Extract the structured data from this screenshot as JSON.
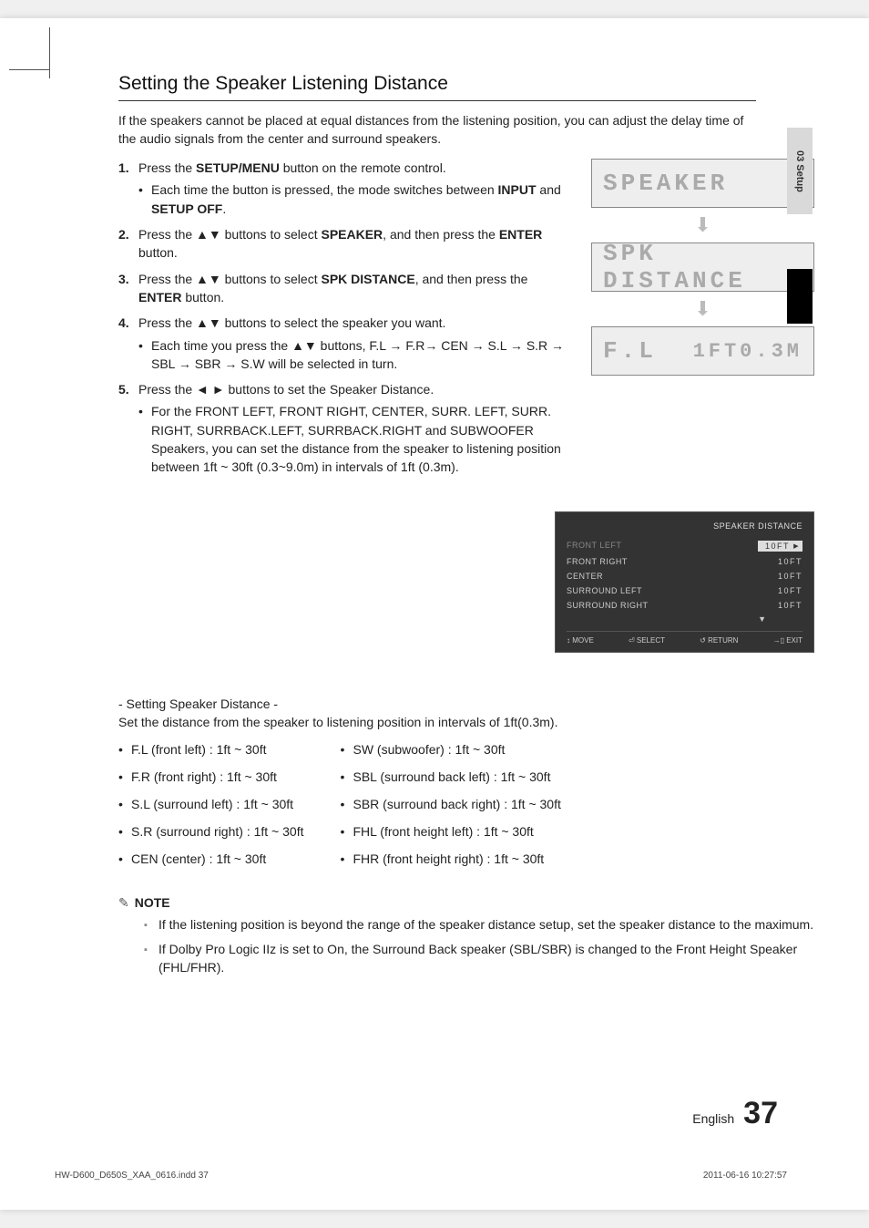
{
  "side_tab": "03  Setup",
  "title": "Setting the Speaker Listening Distance",
  "intro": "If the speakers cannot be placed at equal distances from the listening position, you can adjust the delay time of the audio signals from the center and surround speakers.",
  "steps": {
    "s1_a": "Press the ",
    "s1_b": "SETUP/MENU",
    "s1_c": " button on the remote control.",
    "s1_sub_a": "Each time the button is pressed, the mode switches between ",
    "s1_sub_b": "INPUT",
    "s1_sub_c": " and ",
    "s1_sub_d": "SETUP OFF",
    "s1_sub_e": ".",
    "s2_a": "Press the ▲▼ buttons to select ",
    "s2_b": "SPEAKER",
    "s2_c": ", and then press the ",
    "s2_d": "ENTER",
    "s2_e": " button.",
    "s3_a": "Press the ▲▼ buttons to select ",
    "s3_b": "SPK DISTANCE",
    "s3_c": ", and then press the ",
    "s3_d": "ENTER",
    "s3_e": " button.",
    "s4": "Press the ▲▼ buttons to select the speaker you want.",
    "s4_sub": "Each time you press the ▲▼ buttons, F.L → F.R→ CEN → S.L → S.R → SBL → SBR → S.W will be selected in turn.",
    "s5": "Press the ◄ ► buttons to set the Speaker Distance.",
    "s5_sub": "For the  FRONT LEFT, FRONT RIGHT, CENTER, SURR. LEFT, SURR. RIGHT, SURRBACK.LEFT, SURRBACK.RIGHT and SUBWOOFER Speakers, you can set the distance from the speaker to listening position between 1ft ~ 30ft (0.3~9.0m) in intervals of 1ft (0.3m)."
  },
  "lcd": {
    "l1": "SPEAKER",
    "l2": "SPK DISTANCE",
    "l3a": "F.L",
    "l3b": "1FT0.3M"
  },
  "osd": {
    "title": "SPEAKER DISTANCE",
    "rows": [
      {
        "label": "FRONT LEFT",
        "val": "10FT",
        "sel": true
      },
      {
        "label": "FRONT RIGHT",
        "val": "10FT",
        "sel": false
      },
      {
        "label": "CENTER",
        "val": "10FT",
        "sel": false
      },
      {
        "label": "SURROUND LEFT",
        "val": "10FT",
        "sel": false
      },
      {
        "label": "SURROUND RIGHT",
        "val": "10FT",
        "sel": false
      }
    ],
    "footer": {
      "move": "↕ MOVE",
      "select": "⏎ SELECT",
      "return": "↺ RETURN",
      "exit": "→▯ EXIT"
    }
  },
  "sub": {
    "head": "- Setting Speaker Distance -",
    "desc": "Set the distance from the speaker to listening position in intervals of 1ft(0.3m).",
    "left": [
      "F.L (front left) : 1ft ~ 30ft",
      "F.R (front right) : 1ft ~ 30ft",
      "S.L (surround left) : 1ft ~ 30ft",
      "S.R (surround right) : 1ft ~ 30ft",
      "CEN (center) : 1ft ~ 30ft"
    ],
    "right": [
      "SW (subwoofer) : 1ft ~ 30ft",
      "SBL (surround back left) : 1ft ~ 30ft",
      "SBR (surround back right) : 1ft ~ 30ft",
      "FHL (front height left) : 1ft ~ 30ft",
      "FHR (front height right) : 1ft ~ 30ft"
    ]
  },
  "note": {
    "head": "NOTE",
    "items": [
      "If the listening position is beyond the range of the speaker distance setup, set the speaker distance to the maximum.",
      "If Dolby Pro Logic IIz is set to On, the Surround Back speaker (SBL/SBR) is changed to the Front Height Speaker (FHL/FHR)."
    ]
  },
  "footer": {
    "lang": "English",
    "page": "37",
    "printl": "HW-D600_D650S_XAA_0616.indd   37",
    "printr": "2011-06-16     10:27:57"
  }
}
